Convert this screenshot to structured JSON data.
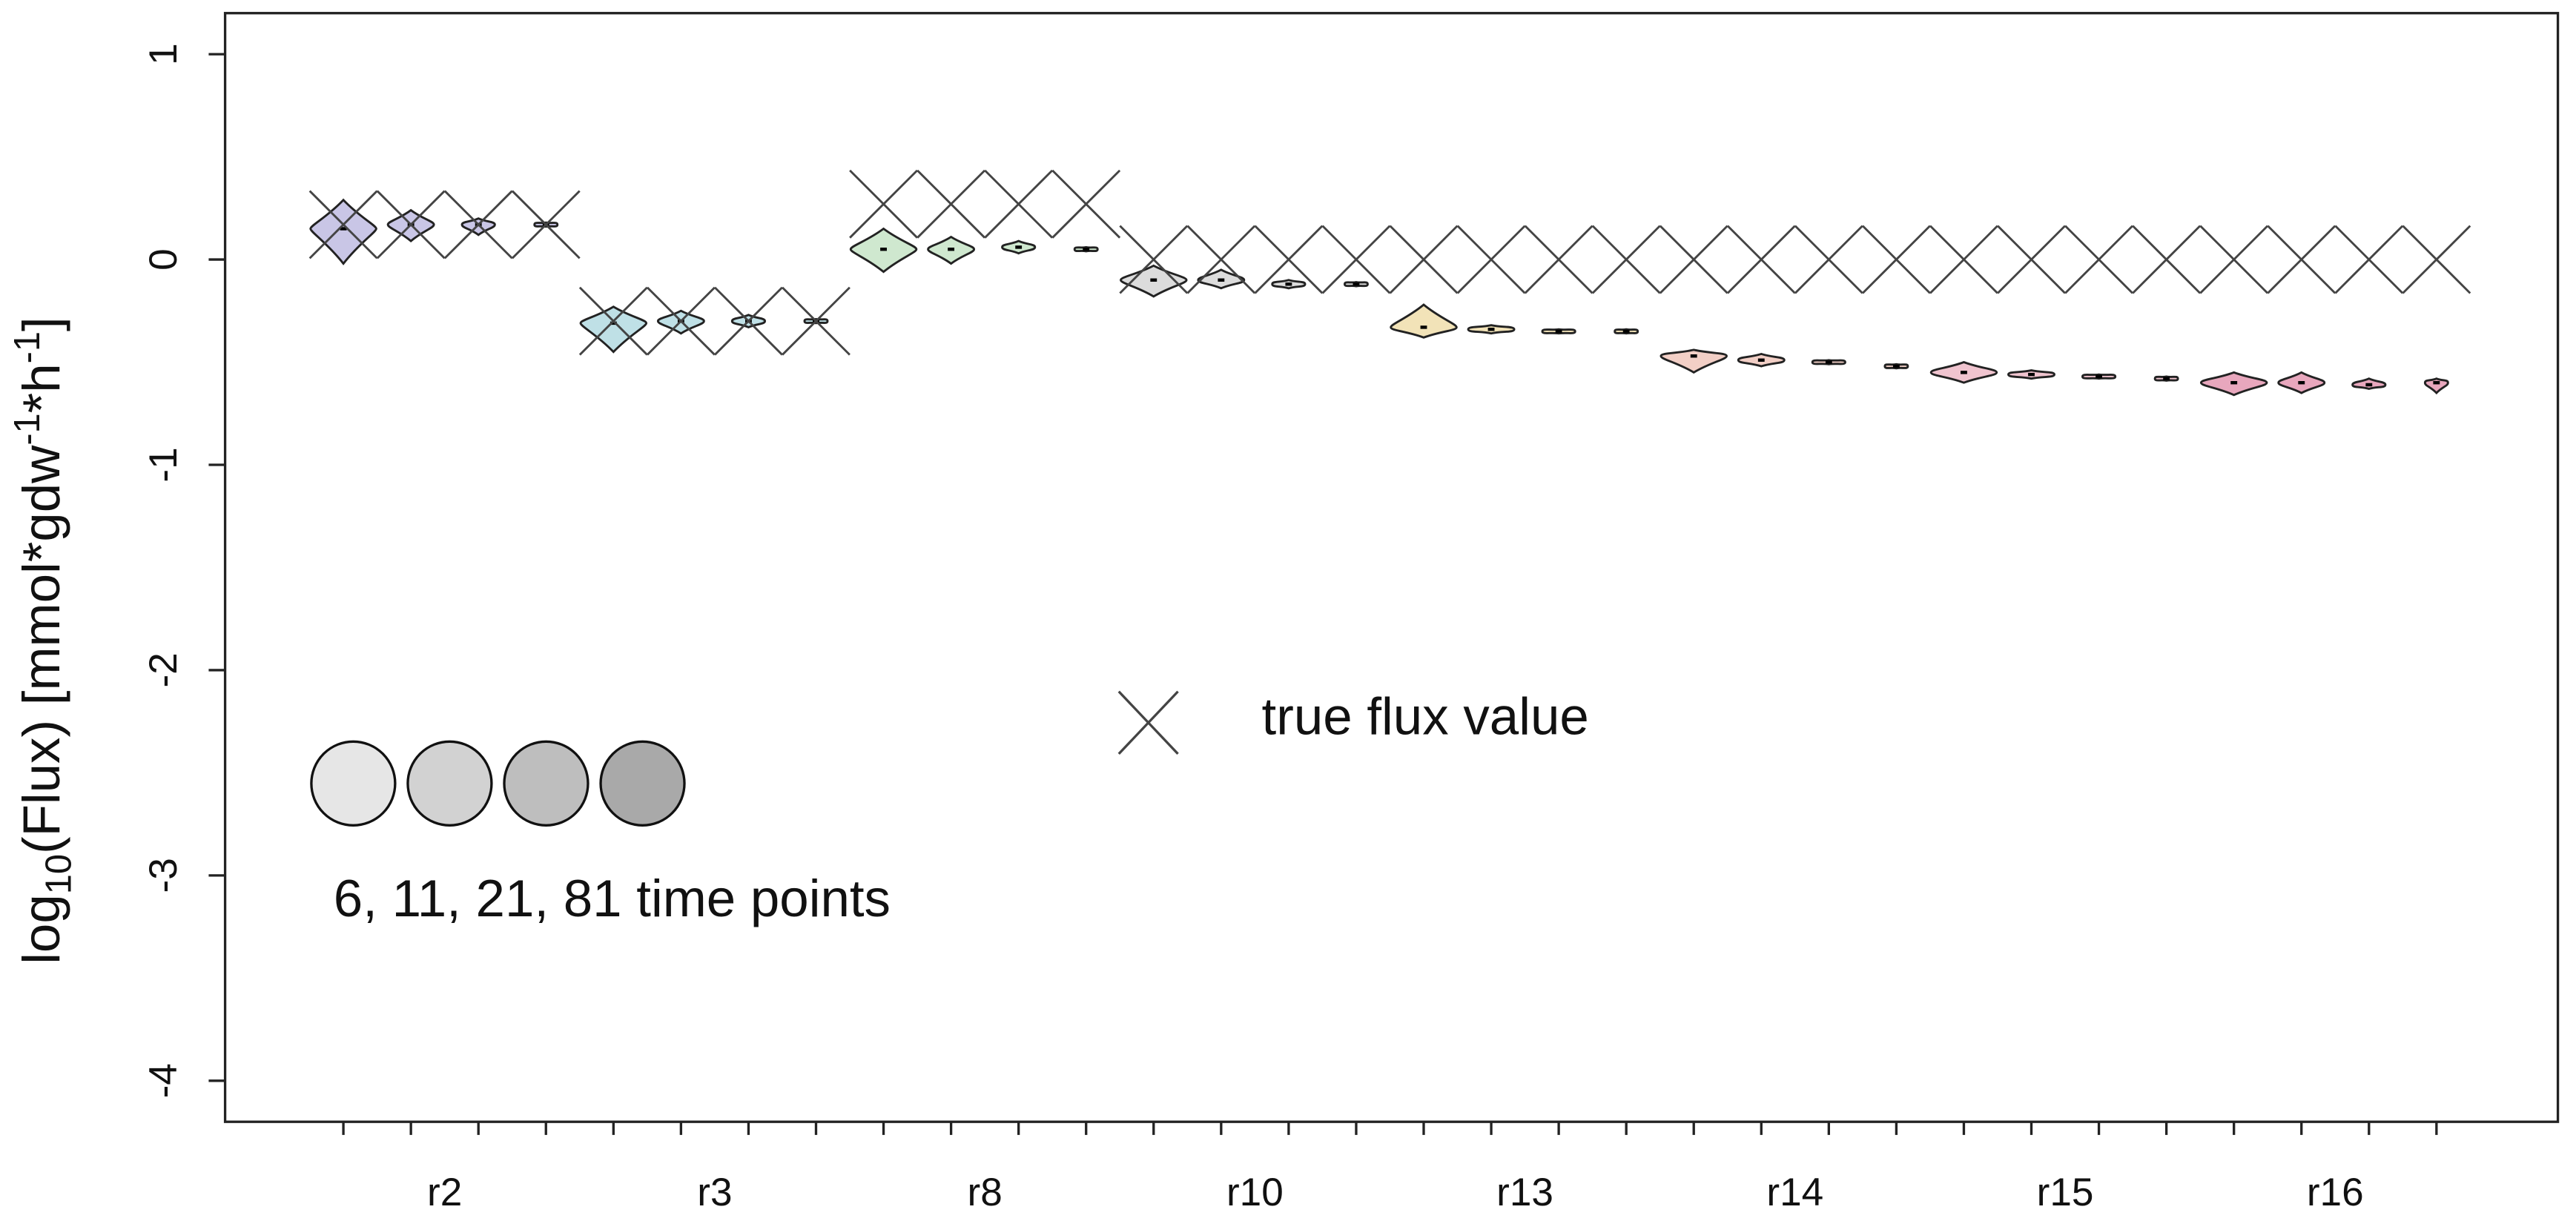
{
  "chart_data": {
    "type": "violin",
    "ylabel_parts": [
      "log",
      "10",
      "(Flux) [mmol*gdw",
      "-1",
      "*h",
      "-1",
      "]"
    ],
    "categories": [
      "r2",
      "r3",
      "r8",
      "r10",
      "r13",
      "r14",
      "r15",
      "r16"
    ],
    "category_colors": [
      "#c9c6e6",
      "#bfe0e6",
      "#cfe8cf",
      "#dcdcdc",
      "#f2e3b8",
      "#f2cfc6",
      "#f0c4cf",
      "#e8a7bd"
    ],
    "ylim": [
      -4.2,
      1.2
    ],
    "yticks": [
      -4,
      -3,
      -2,
      -1,
      0,
      1
    ],
    "series": [
      {
        "color": "#e6e6e6",
        "values": [
          0.15,
          -0.31,
          0.05,
          -0.1,
          -0.33,
          -0.47,
          -0.55,
          -0.6
        ],
        "low": [
          -0.02,
          -0.45,
          -0.06,
          -0.18,
          -0.38,
          -0.55,
          -0.6,
          -0.66
        ],
        "high": [
          0.29,
          -0.23,
          0.15,
          -0.03,
          -0.22,
          -0.44,
          -0.5,
          -0.55
        ]
      },
      {
        "color": "#d2d2d2",
        "values": [
          0.17,
          -0.3,
          0.05,
          -0.1,
          -0.34,
          -0.49,
          -0.56,
          -0.6
        ],
        "low": [
          0.09,
          -0.36,
          -0.02,
          -0.14,
          -0.36,
          -0.52,
          -0.58,
          -0.65
        ],
        "high": [
          0.24,
          -0.25,
          0.11,
          -0.05,
          -0.32,
          -0.46,
          -0.54,
          -0.55
        ]
      },
      {
        "color": "#bebebe",
        "values": [
          0.17,
          -0.3,
          0.06,
          -0.12,
          -0.35,
          -0.5,
          -0.57,
          -0.61
        ],
        "low": [
          0.12,
          -0.33,
          0.03,
          -0.14,
          -0.36,
          -0.51,
          -0.58,
          -0.63
        ],
        "high": [
          0.2,
          -0.27,
          0.09,
          -0.1,
          -0.34,
          -0.49,
          -0.56,
          -0.58
        ]
      },
      {
        "color": "#a9a9a9",
        "values": [
          0.17,
          -0.3,
          0.05,
          -0.12,
          -0.35,
          -0.52,
          -0.58,
          -0.6
        ],
        "low": [
          0.16,
          -0.31,
          0.04,
          -0.13,
          -0.36,
          -0.53,
          -0.59,
          -0.65
        ],
        "high": [
          0.18,
          -0.29,
          0.06,
          -0.11,
          -0.34,
          -0.51,
          -0.57,
          -0.58
        ]
      }
    ],
    "true_values": [
      0.17,
      -0.3,
      0.27,
      0.0,
      0.0,
      0.0,
      0.0,
      0.0
    ],
    "true_label": "true flux value",
    "legend_label": "6, 11, 21, 81 time points"
  }
}
